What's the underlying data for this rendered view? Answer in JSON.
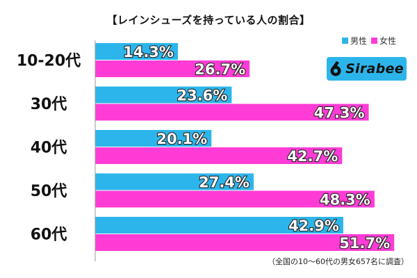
{
  "chart_data": {
    "type": "bar",
    "orientation": "horizontal",
    "title": "【レインシューズを持っている人の割合】",
    "categories": [
      "10-20代",
      "30代",
      "40代",
      "50代",
      "60代"
    ],
    "series": [
      {
        "name": "男性",
        "color": "#2cb5ea",
        "values": [
          14.3,
          23.6,
          20.1,
          27.4,
          42.9
        ],
        "labels": [
          "14.3%",
          "23.6%",
          "20.1%",
          "27.4%",
          "42.9%"
        ]
      },
      {
        "name": "女性",
        "color": "#ff3cd5",
        "values": [
          26.7,
          47.3,
          42.7,
          48.3,
          51.7
        ],
        "labels": [
          "26.7%",
          "47.3%",
          "42.7%",
          "48.3%",
          "51.7%"
        ]
      }
    ],
    "xlim": [
      0,
      60
    ],
    "grid": false,
    "legend_position": "top-right",
    "note": "（全国の10～60代の男女657名に調査）"
  },
  "logo": {
    "text": "Sirabee",
    "icon": "sirabee-logo-mark"
  }
}
